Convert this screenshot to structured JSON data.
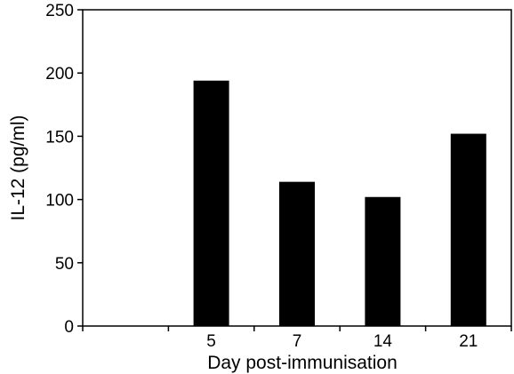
{
  "chart_data": {
    "type": "bar",
    "categories": [
      "",
      "5",
      "7",
      "14",
      "21"
    ],
    "values": [
      null,
      194,
      114,
      102,
      152
    ],
    "xlabel": "Day post-immunisation",
    "ylabel": "IL-12 (pg/ml)",
    "ylim": [
      0,
      250
    ],
    "yticks": [
      0,
      50,
      100,
      150,
      200,
      250
    ],
    "grid": false,
    "bar_color": "#000000"
  }
}
